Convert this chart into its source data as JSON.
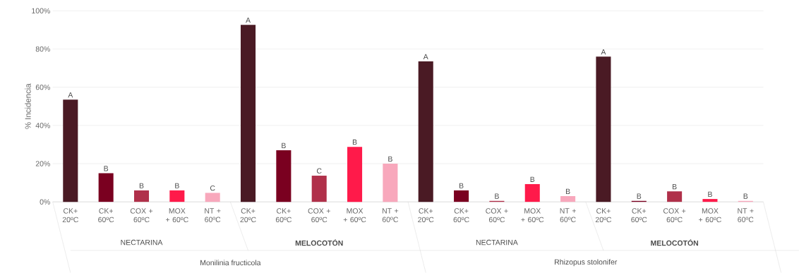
{
  "chart_data": {
    "type": "bar",
    "ylabel": "% Incidencia",
    "categories": [
      "CK+ 20ºC",
      "CK+ 60ºC",
      "COX + 60ºC",
      "MOX + 60ºC",
      "NT + 60ºC",
      "CK+ 20ºC",
      "CK+ 60ºC",
      "COX + 60ºC",
      "MOX + 60ºC",
      "NT + 60ºC",
      "CK+ 20ºC",
      "CK+ 60ºC",
      "COX + 60ºC",
      "MOX + 60ºC",
      "NT + 60ºC",
      "CK+ 20ºC",
      "CK+ 60ºC",
      "COX + 60ºC",
      "MOX + 60ºC",
      "NT + 60ºC"
    ],
    "values": [
      53.5,
      15,
      6,
      6,
      4.7,
      92.6,
      27,
      13.7,
      28.8,
      20,
      73.5,
      6,
      0.5,
      9.3,
      3,
      76,
      0.5,
      5.5,
      1.5,
      0.5
    ],
    "colors": [
      "#4a1a24",
      "#7a0020",
      "#b0304a",
      "#ff1a4a",
      "#f8a8bc",
      "#4a1a24",
      "#7a0020",
      "#b0304a",
      "#ff1a4a",
      "#f8a8bc",
      "#4a1a24",
      "#7a0020",
      "#b0304a",
      "#ff1a4a",
      "#f8a8bc",
      "#4a1a24",
      "#7a0020",
      "#b0304a",
      "#ff1a4a",
      "#f8a8bc"
    ],
    "value_labels": [
      "A",
      "B",
      "B",
      "B",
      "C",
      "A",
      "B",
      "C",
      "B",
      "B",
      "A",
      "B",
      "B",
      "B",
      "B",
      "A",
      "B",
      "B",
      "B",
      "B"
    ],
    "annotations": [
      "NECTARINA",
      "**MELOCOTÓN**",
      "NECTARINA",
      "**MELOCOTÓN**",
      "Monilinia fructicola",
      "Rhizopus stolonifer"
    ],
    "ylim": [
      0,
      100
    ],
    "yticks": [
      {
        "value": 0,
        "label": "0%"
      },
      {
        "value": 20,
        "label": "20%"
      },
      {
        "value": 40,
        "label": "40%"
      },
      {
        "value": 60,
        "label": "60%"
      },
      {
        "value": 80,
        "label": "80%"
      },
      {
        "value": 100,
        "label": "100%"
      }
    ],
    "grid": "y"
  }
}
